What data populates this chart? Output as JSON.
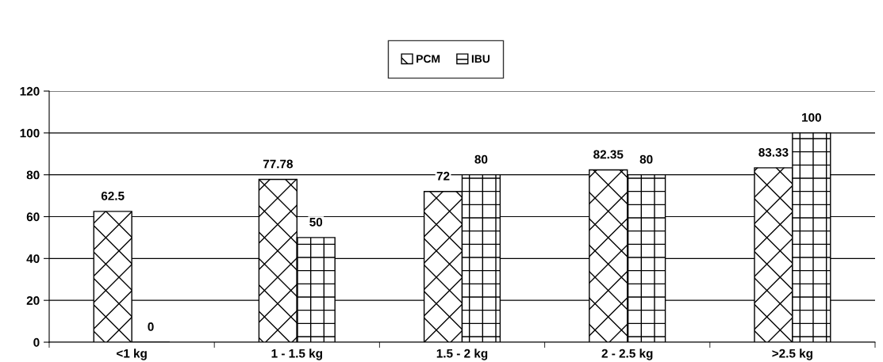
{
  "chart_data": {
    "type": "bar",
    "categories": [
      "<1 kg",
      "1 - 1.5 kg",
      "1.5 - 2 kg",
      "2 - 2.5 kg",
      ">2.5 kg"
    ],
    "series": [
      {
        "name": "PCM",
        "color": "#000000",
        "values": [
          62.5,
          77.78,
          72,
          82.35,
          83.33
        ]
      },
      {
        "name": "IBU",
        "color": "#000000",
        "values": [
          0,
          50,
          80,
          80,
          100
        ]
      }
    ],
    "ylim": [
      0,
      120
    ],
    "yticks": [
      0,
      20,
      40,
      60,
      80,
      100,
      120
    ],
    "grid": "y",
    "legend": "top",
    "data_labels": true
  }
}
